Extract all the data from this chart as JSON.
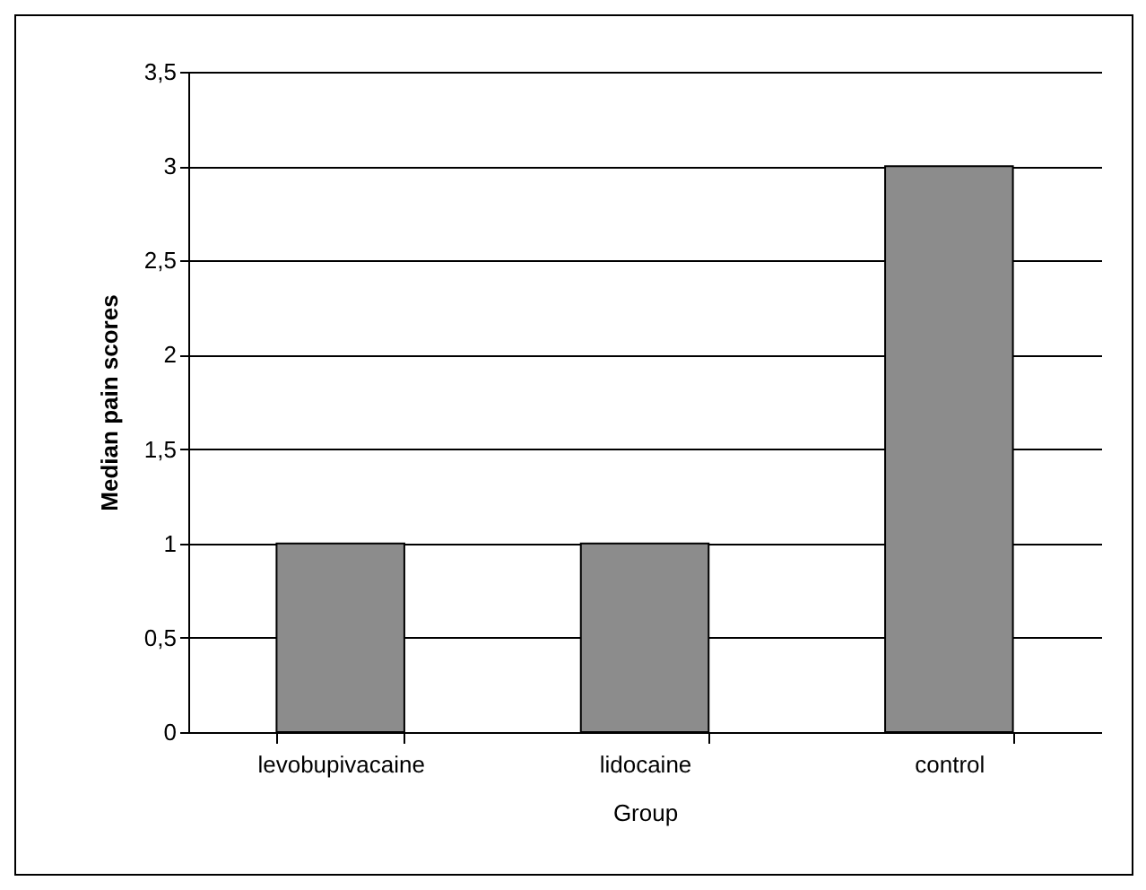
{
  "chart_data": {
    "type": "bar",
    "xlabel": "Group",
    "ylabel": "Median pain scores",
    "categories": [
      "levobupivacaine",
      "lidocaine",
      "control"
    ],
    "values": [
      1,
      1,
      3
    ],
    "color": "#8c8c8c",
    "ylim": [
      0,
      3.5
    ],
    "yticks": [
      0,
      {
        "value": 0.5,
        "label": "0,5"
      },
      1,
      {
        "value": 1.5,
        "label": "1,5"
      },
      2,
      {
        "value": 2.5,
        "label": "2,5"
      },
      3,
      {
        "value": 3.5,
        "label": "3,5"
      }
    ],
    "grid": "y"
  }
}
